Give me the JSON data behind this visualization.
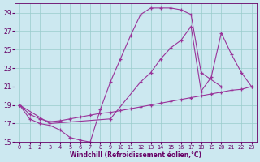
{
  "xlabel": "Windchill (Refroidissement éolien,°C)",
  "bg_color": "#cce8f0",
  "line_color": "#993399",
  "grid_color": "#99cccc",
  "text_color": "#660066",
  "xlim": [
    -0.5,
    23.5
  ],
  "ylim": [
    15,
    30
  ],
  "yticks": [
    15,
    17,
    19,
    21,
    23,
    25,
    27,
    29
  ],
  "xticks": [
    0,
    1,
    2,
    3,
    4,
    5,
    6,
    7,
    8,
    9,
    10,
    11,
    12,
    13,
    14,
    15,
    16,
    17,
    18,
    19,
    20,
    21,
    22,
    23
  ],
  "s1x": [
    0,
    1,
    2,
    3,
    4,
    5,
    6,
    7,
    8,
    9,
    10,
    11,
    12,
    13,
    14,
    15,
    16,
    17,
    18,
    20
  ],
  "s1y": [
    19.0,
    17.5,
    17.0,
    16.8,
    16.3,
    15.5,
    15.2,
    15.0,
    18.5,
    21.5,
    24.0,
    26.5,
    28.8,
    29.5,
    29.5,
    29.5,
    29.3,
    28.8,
    22.5,
    21.0
  ],
  "s2x": [
    0,
    3,
    9,
    12,
    13,
    14,
    15,
    16,
    17,
    18,
    19,
    20,
    21,
    22,
    23
  ],
  "s2y": [
    19.0,
    17.0,
    17.5,
    21.5,
    22.5,
    24.0,
    25.2,
    26.0,
    27.5,
    20.5,
    22.0,
    26.8,
    24.5,
    22.5,
    21.0
  ],
  "s3x": [
    0,
    1,
    2,
    3,
    4,
    5,
    6,
    7,
    8,
    9,
    10,
    11,
    12,
    13,
    14,
    15,
    16,
    17,
    18,
    19,
    20,
    21,
    22,
    23
  ],
  "s3y": [
    19.0,
    18.0,
    17.5,
    17.2,
    17.3,
    17.5,
    17.7,
    17.9,
    18.1,
    18.2,
    18.4,
    18.6,
    18.8,
    19.0,
    19.2,
    19.4,
    19.6,
    19.8,
    20.0,
    20.2,
    20.4,
    20.6,
    20.7,
    21.0
  ]
}
